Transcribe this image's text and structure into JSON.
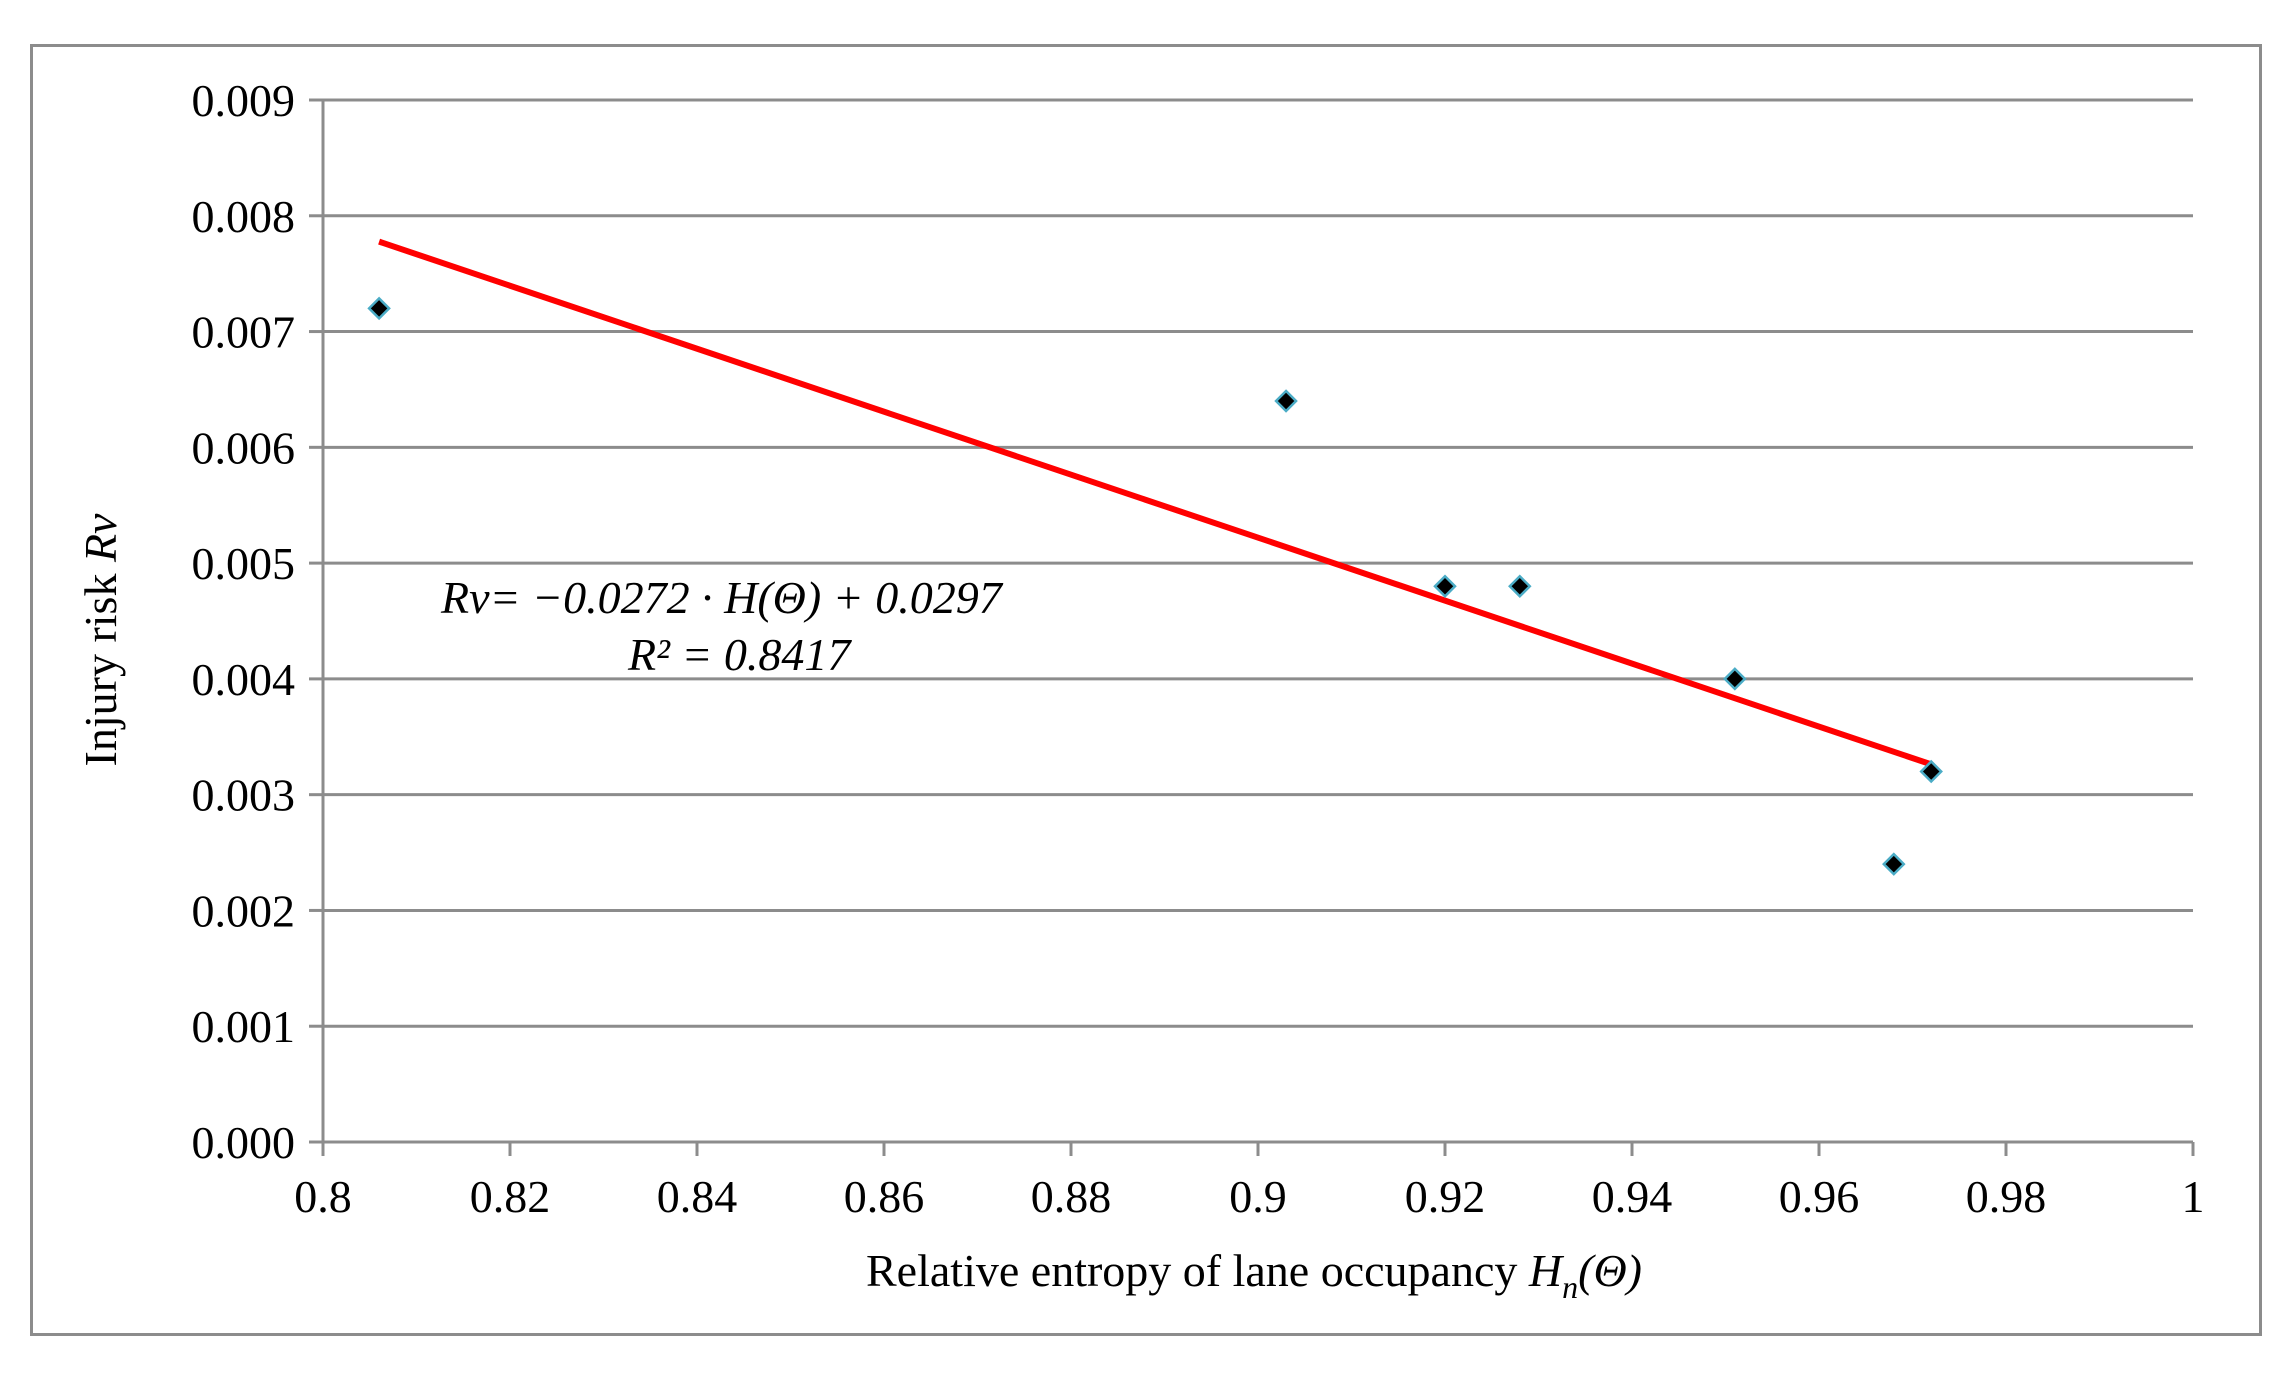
{
  "chart_data": {
    "type": "scatter",
    "title": "",
    "xlabel_text": "Relative entropy of lane occupancy ",
    "xlabel_var": "H",
    "xlabel_sub": "n",
    "xlabel_tail": "(Θ)",
    "ylabel_text": "Injury risk ",
    "ylabel_var": "Rv",
    "xlim": [
      0.8,
      1.0
    ],
    "ylim": [
      0.0,
      0.009
    ],
    "x_ticks": [
      "0.8",
      "0.82",
      "0.84",
      "0.86",
      "0.88",
      "0.9",
      "0.92",
      "0.94",
      "0.96",
      "0.98",
      "1"
    ],
    "y_ticks": [
      "0.000",
      "0.001",
      "0.002",
      "0.003",
      "0.004",
      "0.005",
      "0.006",
      "0.007",
      "0.008",
      "0.009"
    ],
    "grid": "horizontal",
    "series": [
      {
        "name": "Injury risk",
        "marker": "diamond",
        "color": "#000000",
        "marker_edge": "#4bacc6",
        "points": [
          {
            "x": 0.806,
            "y": 0.0072
          },
          {
            "x": 0.903,
            "y": 0.0064
          },
          {
            "x": 0.92,
            "y": 0.0048
          },
          {
            "x": 0.928,
            "y": 0.0048
          },
          {
            "x": 0.951,
            "y": 0.004
          },
          {
            "x": 0.968,
            "y": 0.0024
          },
          {
            "x": 0.972,
            "y": 0.0032
          }
        ]
      }
    ],
    "trendline": {
      "color": "#ff0000",
      "slope": -0.0272,
      "intercept": 0.0297,
      "x_range": [
        0.806,
        0.972
      ],
      "equation": "Rv= −0.0272 · H(Θ) + 0.0297",
      "r_squared": "R² = 0.8417"
    }
  }
}
